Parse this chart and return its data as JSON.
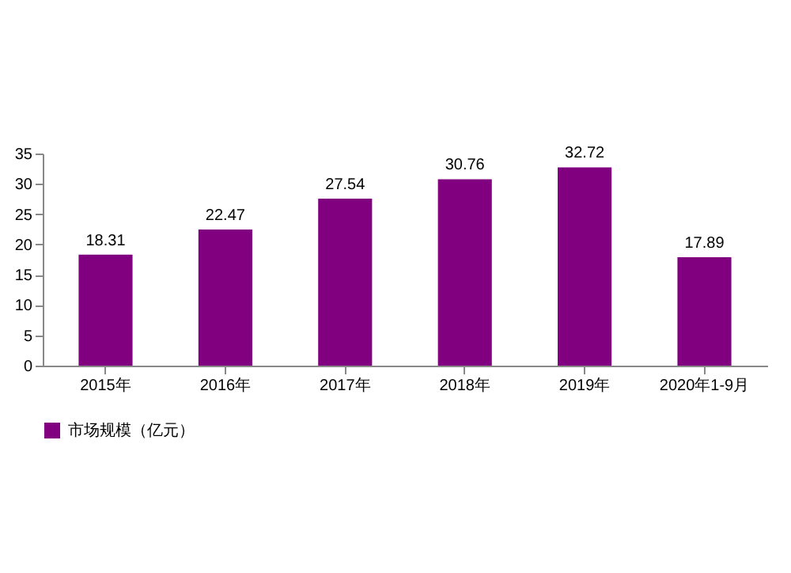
{
  "chart_data": {
    "type": "bar",
    "categories": [
      "2015年",
      "2016年",
      "2017年",
      "2018年",
      "2019年",
      "2020年1-9月"
    ],
    "series": [
      {
        "name": "市场规模（亿元）",
        "color": "#800080",
        "values": [
          18.31,
          22.47,
          27.54,
          30.76,
          32.72,
          17.89
        ]
      }
    ],
    "ylim": [
      0,
      35
    ],
    "yticks": [
      0,
      5,
      10,
      15,
      20,
      25,
      30,
      35
    ],
    "data_labels": true,
    "legend": "bottom",
    "grid": false
  }
}
